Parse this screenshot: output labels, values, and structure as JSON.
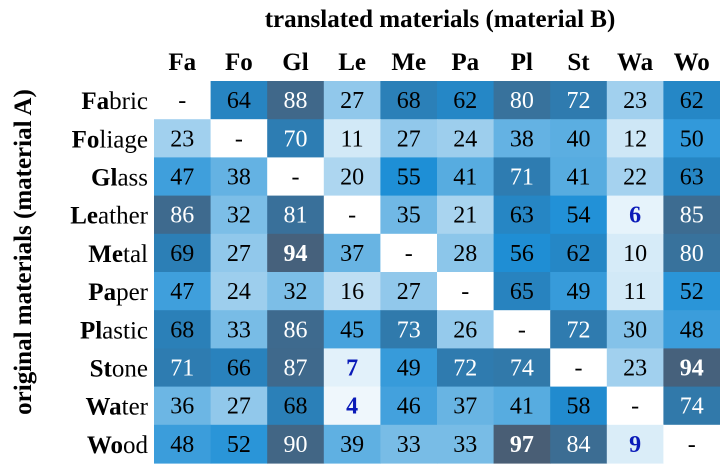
{
  "chart_data": {
    "type": "heatmap",
    "title": "translated materials (material B)",
    "ylabel": "original materials (material A)",
    "columns": [
      "Fa",
      "Fo",
      "Gl",
      "Le",
      "Me",
      "Pa",
      "Pl",
      "St",
      "Wa",
      "Wo"
    ],
    "rows": [
      {
        "bold": "Fa",
        "rest": "bric"
      },
      {
        "bold": "Fo",
        "rest": "liage"
      },
      {
        "bold": "Gl",
        "rest": "ass"
      },
      {
        "bold": "Le",
        "rest": "ather"
      },
      {
        "bold": "Me",
        "rest": "tal"
      },
      {
        "bold": "Pa",
        "rest": "per"
      },
      {
        "bold": "Pl",
        "rest": "astic"
      },
      {
        "bold": "St",
        "rest": "one"
      },
      {
        "bold": "Wa",
        "rest": "ter"
      },
      {
        "bold": "Wo",
        "rest": "od"
      }
    ],
    "values": [
      [
        null,
        64,
        88,
        27,
        68,
        62,
        80,
        72,
        23,
        62
      ],
      [
        23,
        null,
        70,
        11,
        27,
        24,
        38,
        40,
        12,
        50
      ],
      [
        47,
        38,
        null,
        20,
        55,
        41,
        71,
        41,
        22,
        63
      ],
      [
        86,
        32,
        81,
        null,
        35,
        21,
        63,
        54,
        6,
        85
      ],
      [
        69,
        27,
        94,
        37,
        null,
        28,
        56,
        62,
        10,
        80
      ],
      [
        47,
        24,
        32,
        16,
        27,
        null,
        65,
        49,
        11,
        52
      ],
      [
        68,
        33,
        86,
        45,
        73,
        26,
        null,
        72,
        30,
        48
      ],
      [
        71,
        66,
        87,
        7,
        49,
        72,
        74,
        null,
        23,
        94
      ],
      [
        36,
        27,
        68,
        4,
        46,
        37,
        41,
        58,
        null,
        74
      ],
      [
        48,
        52,
        90,
        39,
        33,
        33,
        97,
        84,
        9,
        null
      ]
    ],
    "diagonal_label": "-",
    "highlighted": [
      [
        3,
        8
      ],
      [
        4,
        2
      ],
      [
        7,
        3
      ],
      [
        7,
        9
      ],
      [
        8,
        3
      ],
      [
        9,
        6
      ],
      [
        9,
        8
      ]
    ],
    "colors": {
      "low": "#ffffff",
      "mid": "#1e8fd6",
      "high": "#4c5a6e",
      "dark_text": "#000000",
      "light_text": "#ffffff",
      "min_text": "#0a1ab8"
    }
  }
}
